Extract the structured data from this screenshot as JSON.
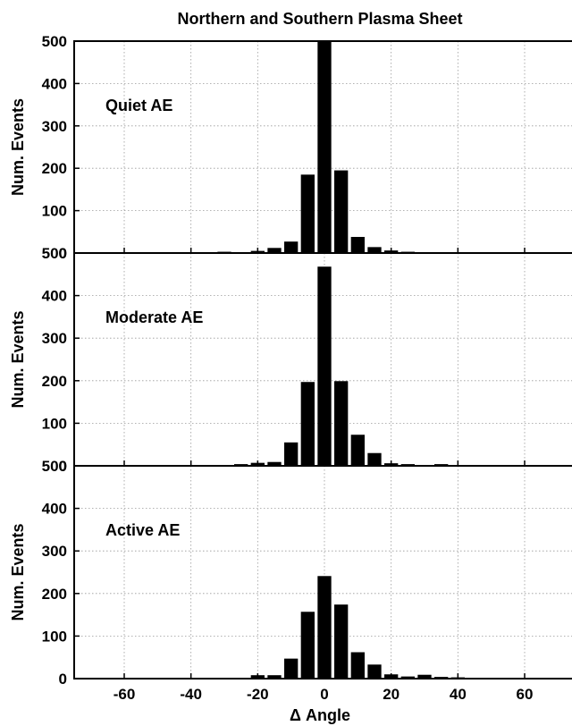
{
  "chart_data": [
    {
      "type": "bar",
      "title": "Northern and Southern Plasma Sheet",
      "panel_label": "Quiet AE",
      "xlabel": "",
      "ylabel": "Num. Events",
      "xlim": [
        -75,
        75
      ],
      "ylim": [
        0,
        500
      ],
      "yticks": [
        0,
        100,
        200,
        300,
        400,
        500
      ],
      "xticks": [],
      "grid": true,
      "x": [
        -50,
        -45,
        -40,
        -35,
        -30,
        -25,
        -20,
        -15,
        -10,
        -5,
        0,
        5,
        10,
        15,
        20,
        25,
        30,
        35,
        40,
        45,
        50
      ],
      "values": [
        0,
        0,
        0,
        0,
        3,
        2,
        5,
        12,
        27,
        185,
        500,
        195,
        38,
        14,
        6,
        3,
        1,
        0,
        0,
        0,
        0
      ]
    },
    {
      "type": "bar",
      "title": "",
      "panel_label": "Moderate AE",
      "xlabel": "",
      "ylabel": "Num. Events",
      "xlim": [
        -75,
        75
      ],
      "ylim": [
        0,
        500
      ],
      "yticks": [
        0,
        100,
        200,
        300,
        400,
        500
      ],
      "xticks": [],
      "grid": true,
      "x": [
        -50,
        -45,
        -40,
        -35,
        -30,
        -25,
        -20,
        -15,
        -10,
        -5,
        0,
        5,
        10,
        15,
        20,
        25,
        30,
        35,
        40,
        45,
        50
      ],
      "values": [
        0,
        0,
        0,
        0,
        2,
        4,
        7,
        9,
        55,
        197,
        468,
        199,
        73,
        30,
        6,
        4,
        1,
        4,
        0,
        0,
        0
      ]
    },
    {
      "type": "bar",
      "title": "",
      "panel_label": "Active AE",
      "xlabel": "Δ Angle",
      "ylabel": "Num. Events",
      "xlim": [
        -75,
        75
      ],
      "ylim": [
        0,
        500
      ],
      "yticks": [
        0,
        100,
        200,
        300,
        400,
        500
      ],
      "xticks": [
        -60,
        -40,
        -20,
        0,
        20,
        40,
        60
      ],
      "grid": true,
      "x": [
        -50,
        -45,
        -40,
        -35,
        -30,
        -25,
        -20,
        -15,
        -10,
        -5,
        0,
        5,
        10,
        15,
        20,
        25,
        30,
        35,
        40,
        45,
        50
      ],
      "values": [
        0,
        0,
        0,
        0,
        1,
        2,
        8,
        8,
        47,
        157,
        241,
        174,
        62,
        33,
        10,
        5,
        9,
        4,
        3,
        2,
        2
      ]
    }
  ]
}
